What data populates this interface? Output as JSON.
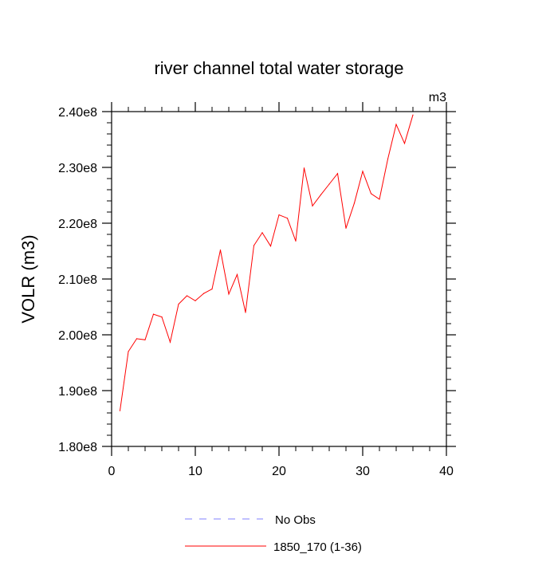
{
  "chart_data": {
    "type": "line",
    "title": "river channel total water storage",
    "units_label": "m3",
    "xlabel": "",
    "ylabel": "VOLR  (m3)",
    "xlim": [
      0,
      40
    ],
    "ylim": [
      180000000,
      240000000
    ],
    "x_major_ticks": [
      0,
      10,
      20,
      30,
      40
    ],
    "x_tick_labels": [
      "0",
      "10",
      "20",
      "30",
      "40"
    ],
    "x_minor_step": 2,
    "y_major_ticks": [
      180000000,
      190000000,
      200000000,
      210000000,
      220000000,
      230000000,
      240000000
    ],
    "y_tick_labels": [
      "1.80e8",
      "1.90e8",
      "2.00e8",
      "2.10e8",
      "2.20e8",
      "2.30e8",
      "2.40e8"
    ],
    "y_minor_step": 2000000,
    "grid": false,
    "series": [
      {
        "name": "1850_170 (1-36)",
        "color": "#ff0000",
        "dash": "solid",
        "x": [
          1,
          2,
          3,
          4,
          5,
          6,
          7,
          8,
          9,
          10,
          11,
          12,
          13,
          14,
          15,
          16,
          17,
          18,
          19,
          20,
          21,
          22,
          23,
          24,
          25,
          26,
          27,
          28,
          29,
          30,
          31,
          32,
          33,
          34,
          35,
          36
        ],
        "values": [
          186400000,
          197000000,
          199300000,
          199100000,
          203700000,
          203200000,
          198700000,
          205500000,
          207000000,
          206100000,
          207400000,
          208200000,
          215200000,
          207300000,
          210800000,
          204000000,
          216000000,
          218300000,
          215900000,
          221500000,
          220900000,
          216800000,
          229900000,
          223100000,
          225100000,
          227000000,
          228900000,
          219100000,
          223600000,
          229300000,
          225300000,
          224300000,
          231500000,
          237700000,
          234300000,
          239400000
        ]
      }
    ],
    "legend": {
      "placement": "bottom-center",
      "entries": [
        {
          "label": "No Obs",
          "color": "#8080ff",
          "dash": "dashed"
        },
        {
          "label": "1850_170 (1-36)",
          "color": "#ff0000",
          "dash": "solid"
        }
      ]
    }
  }
}
